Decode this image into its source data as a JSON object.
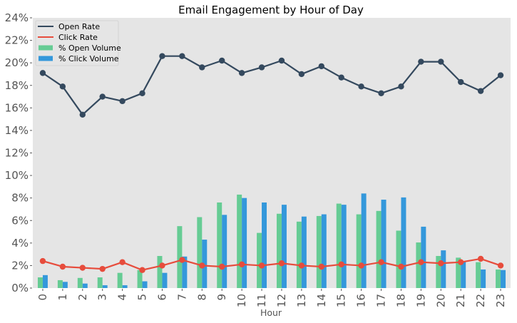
{
  "chart_data": {
    "type": "bar",
    "title": "Email Engagement by Hour of Day",
    "xlabel": "Hour",
    "ylabel": "",
    "ylim": [
      0,
      24
    ],
    "y_ticks": [
      0,
      2,
      4,
      6,
      8,
      10,
      12,
      14,
      16,
      18,
      20,
      22,
      24
    ],
    "y_tick_labels": [
      "0%",
      "2%",
      "4%",
      "6%",
      "8%",
      "10%",
      "12%",
      "14%",
      "16%",
      "18%",
      "20%",
      "22%",
      "24%"
    ],
    "grid": false,
    "legend_position": "top-left",
    "categories": [
      "0",
      "1",
      "2",
      "3",
      "4",
      "5",
      "6",
      "7",
      "8",
      "9",
      "10",
      "11",
      "12",
      "13",
      "14",
      "15",
      "16",
      "17",
      "18",
      "19",
      "20",
      "21",
      "22",
      "23"
    ],
    "series": [
      {
        "name": "Open Rate",
        "kind": "line",
        "color": "#34495e",
        "values": [
          19.1,
          17.9,
          15.4,
          17.0,
          16.6,
          17.3,
          20.6,
          20.6,
          19.6,
          20.2,
          19.1,
          19.6,
          20.2,
          19.0,
          19.7,
          18.7,
          17.9,
          17.3,
          17.9,
          20.1,
          20.1,
          18.3,
          17.5,
          18.9
        ]
      },
      {
        "name": "Click Rate",
        "kind": "line",
        "color": "#e74c3c",
        "values": [
          2.4,
          1.9,
          1.8,
          1.7,
          2.3,
          1.6,
          2.0,
          2.5,
          2.0,
          1.9,
          2.1,
          2.0,
          2.2,
          2.0,
          1.9,
          2.1,
          2.0,
          2.3,
          1.9,
          2.3,
          2.2,
          2.3,
          2.6,
          2.0
        ]
      },
      {
        "name": "% Open Volume",
        "kind": "bar",
        "color": "#66cc94",
        "values": [
          0.95,
          0.7,
          0.9,
          0.95,
          1.35,
          1.6,
          2.85,
          5.5,
          6.3,
          7.6,
          8.3,
          4.9,
          6.6,
          5.9,
          6.4,
          7.5,
          6.55,
          6.85,
          5.1,
          4.05,
          2.85,
          2.7,
          2.3,
          1.65
        ]
      },
      {
        "name": "% Click Volume",
        "kind": "bar",
        "color": "#3498db",
        "values": [
          1.15,
          0.55,
          0.4,
          0.25,
          0.25,
          0.6,
          1.35,
          2.8,
          4.3,
          6.5,
          8.0,
          7.6,
          7.4,
          6.35,
          6.55,
          7.4,
          8.4,
          7.85,
          8.05,
          5.45,
          3.35,
          2.4,
          1.65,
          1.6
        ]
      }
    ]
  }
}
